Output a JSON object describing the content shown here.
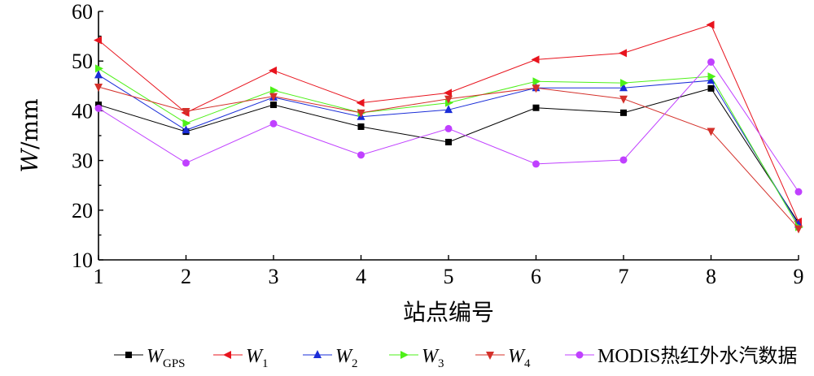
{
  "chart_data": {
    "type": "line",
    "xlabel": "站点编号",
    "ylabel": {
      "var": "W",
      "unit": "/mm"
    },
    "x": [
      1,
      2,
      3,
      4,
      5,
      6,
      7,
      8,
      9
    ],
    "xlim": [
      1,
      9
    ],
    "ylim": [
      10,
      60
    ],
    "yticks": [
      10,
      20,
      30,
      40,
      50,
      60
    ],
    "grid": false,
    "legend_position": "bottom",
    "series": [
      {
        "name": "W",
        "sub": "GPS",
        "color": "#000000",
        "marker": "square",
        "values": [
          41.2,
          35.8,
          41.2,
          36.8,
          33.7,
          40.6,
          39.6,
          44.5,
          17.5
        ]
      },
      {
        "name": "W",
        "sub": "1",
        "color": "#e8141e",
        "marker": "triangle-left",
        "values": [
          54.2,
          39.6,
          48.1,
          41.6,
          43.6,
          50.3,
          51.6,
          57.3,
          17.7
        ]
      },
      {
        "name": "W",
        "sub": "2",
        "color": "#1a2dd8",
        "marker": "triangle-up",
        "values": [
          47.2,
          36.1,
          42.7,
          38.8,
          40.2,
          44.6,
          44.6,
          46.1,
          17.1
        ]
      },
      {
        "name": "W",
        "sub": "3",
        "color": "#4ef018",
        "marker": "triangle-right",
        "values": [
          48.5,
          37.5,
          44.1,
          39.6,
          41.6,
          45.9,
          45.6,
          46.9,
          16.6
        ]
      },
      {
        "name": "W",
        "sub": "4",
        "color": "#d4302a",
        "marker": "triangle-down",
        "values": [
          44.8,
          39.9,
          42.9,
          39.6,
          42.4,
          44.6,
          42.4,
          35.9,
          16.3
        ]
      },
      {
        "name": "MODIS热红外水汽数据",
        "sub": "",
        "color": "#c040ff",
        "marker": "circle",
        "values": [
          40.5,
          29.5,
          37.4,
          31.1,
          36.4,
          29.3,
          30.1,
          49.8,
          23.7
        ]
      }
    ]
  }
}
